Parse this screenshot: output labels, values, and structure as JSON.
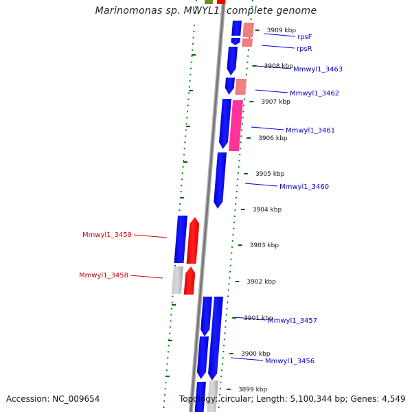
{
  "title": "Marinomonas sp. MWYL1, complete genome",
  "accession": "Accession: NC_009654",
  "topology": "Topology: circular; Length: 5,100,344 bp; Genes: 4,549",
  "colors": {
    "forward_cds": "#0000ff",
    "reverse_cds": "#ff0000",
    "pseudo": "#b4b4b4",
    "rrna_light": "#f08080",
    "rrna_pink": "#ff3399",
    "olive": "#6b8e23",
    "backbone": "#808080",
    "tick": "#006400",
    "forward_label": "#0000cc",
    "reverse_label": "#cc0000"
  },
  "kbp_labels": [
    "3909 kbp",
    "3908 kbp",
    "3907 kbp",
    "3906 kbp",
    "3905 kbp",
    "3904 kbp",
    "3903 kbp",
    "3902 kbp",
    "3901 kbp",
    "3900 kbp",
    "3899 kbp"
  ],
  "forward_gene_labels": [
    "rpsF",
    "rpsR",
    "Mmwyl1_3463",
    "Mmwyl1_3462",
    "Mmwyl1_3461",
    "Mmwyl1_3460",
    "Mmwyl1_3457",
    "Mmwyl1_3456"
  ],
  "reverse_gene_labels": [
    "Mmwyl1_3459",
    "Mmwyl1_3458"
  ]
}
